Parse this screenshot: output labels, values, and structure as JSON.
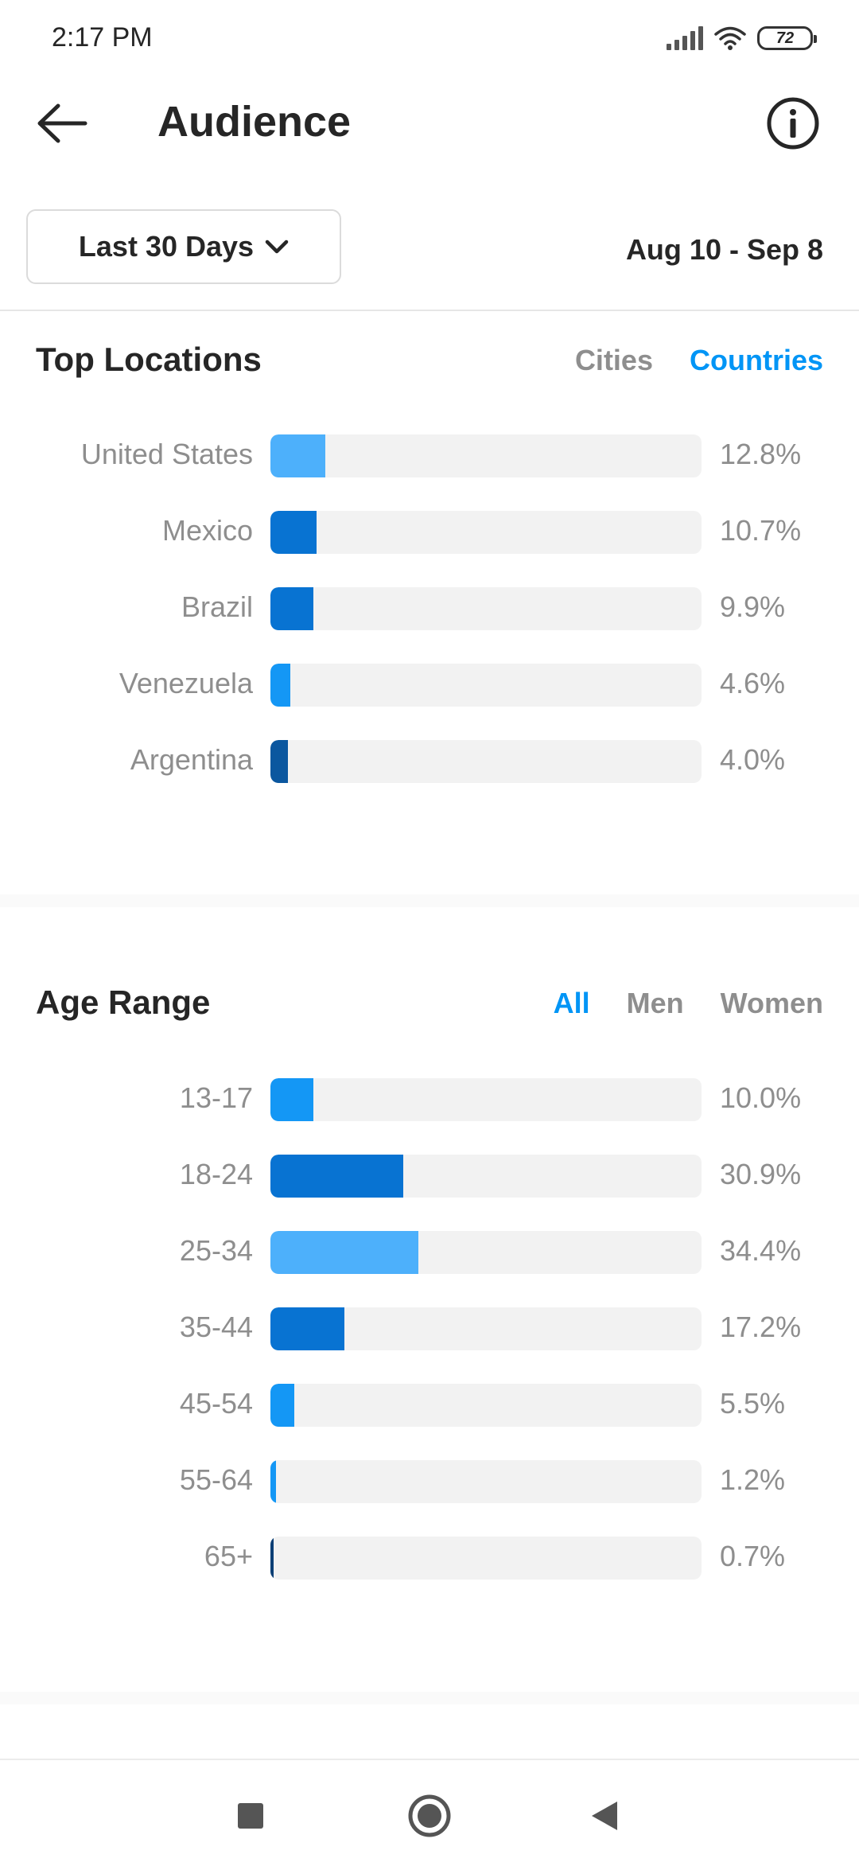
{
  "status_bar": {
    "time": "2:17 PM",
    "battery": "72"
  },
  "header": {
    "title": "Audience",
    "back_icon": "arrow-left-icon",
    "info_icon": "info-circle-icon"
  },
  "range_selector": {
    "selected": "Last 30 Days",
    "dates": "Aug 10 - Sep 8"
  },
  "top_locations": {
    "title": "Top Locations",
    "tabs": [
      {
        "label": "Cities",
        "active": false
      },
      {
        "label": "Countries",
        "active": true
      }
    ]
  },
  "age_range": {
    "title": "Age Range",
    "tabs": [
      {
        "label": "All",
        "active": true
      },
      {
        "label": "Men",
        "active": false
      },
      {
        "label": "Women",
        "active": false
      }
    ]
  },
  "colors": {
    "accent": "#0095f6",
    "track": "#f2f2f2",
    "muted": "#8e8e8e",
    "text": "#262626"
  },
  "chart_data": [
    {
      "type": "bar",
      "title": "Top Locations",
      "orientation": "horizontal",
      "categories": [
        "United States",
        "Mexico",
        "Brazil",
        "Venezuela",
        "Argentina"
      ],
      "values": [
        12.8,
        10.7,
        9.9,
        4.6,
        4.0
      ],
      "value_labels": [
        "12.8%",
        "10.7%",
        "9.9%",
        "4.6%",
        "4.0%"
      ],
      "colors": [
        "#4db0fb",
        "#0873d2",
        "#0873d2",
        "#1497f5",
        "#0b579f"
      ],
      "xlim": [
        0,
        100
      ]
    },
    {
      "type": "bar",
      "title": "Age Range",
      "orientation": "horizontal",
      "categories": [
        "13-17",
        "18-24",
        "25-34",
        "35-44",
        "45-54",
        "55-64",
        "65+"
      ],
      "values": [
        10.0,
        30.9,
        34.4,
        17.2,
        5.5,
        1.2,
        0.7
      ],
      "value_labels": [
        "10.0%",
        "30.9%",
        "34.4%",
        "17.2%",
        "5.5%",
        "1.2%",
        "0.7%"
      ],
      "colors": [
        "#1497f5",
        "#0873d2",
        "#4db0fb",
        "#0873d2",
        "#1497f5",
        "#1497f5",
        "#0b3f75"
      ],
      "xlim": [
        0,
        100
      ]
    }
  ],
  "nav_bar": {
    "recents_icon": "square-recents-icon",
    "home_icon": "circle-home-icon",
    "back_icon": "triangle-back-icon"
  }
}
